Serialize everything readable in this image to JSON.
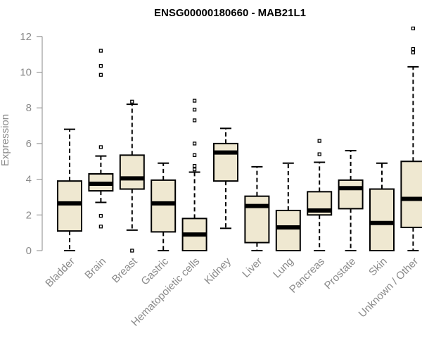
{
  "chart_data": {
    "type": "boxplot",
    "title": "ENSG00000180660 - MAB21L1",
    "xlabel": "",
    "ylabel": "Expression",
    "ylim": [
      0,
      12.4
    ],
    "yticks": [
      0,
      2,
      4,
      6,
      8,
      10,
      12
    ],
    "box_color": "#efe8d1",
    "categories": [
      "Bladder",
      "Brain",
      "Breast",
      "Gastric",
      "Hematopoietic cells",
      "Kidney",
      "Liver",
      "Lung",
      "Pancreas",
      "Prostate",
      "Skin",
      "Unknown / Other"
    ],
    "boxes": [
      {
        "whisker_low": 0.0,
        "q1": 1.1,
        "median": 2.65,
        "q3": 3.9,
        "whisker_high": 6.8,
        "outliers": []
      },
      {
        "whisker_low": 2.7,
        "q1": 3.35,
        "median": 3.75,
        "q3": 4.3,
        "whisker_high": 5.3,
        "outliers": [
          1.35,
          1.95,
          5.8,
          9.85,
          10.35,
          11.2
        ]
      },
      {
        "whisker_low": 1.15,
        "q1": 3.45,
        "median": 4.05,
        "q3": 5.35,
        "whisker_high": 8.2,
        "outliers": [
          0.0,
          8.35
        ]
      },
      {
        "whisker_low": 0.0,
        "q1": 1.05,
        "median": 2.65,
        "q3": 3.95,
        "whisker_high": 4.9,
        "outliers": []
      },
      {
        "whisker_low": 0.0,
        "q1": 0.0,
        "median": 0.9,
        "q3": 1.8,
        "whisker_high": 4.4,
        "outliers": [
          4.55,
          4.75,
          5.35,
          6.0,
          7.3,
          7.9,
          8.4
        ]
      },
      {
        "whisker_low": 1.25,
        "q1": 3.9,
        "median": 5.5,
        "q3": 6.0,
        "whisker_high": 6.85,
        "outliers": []
      },
      {
        "whisker_low": 0.0,
        "q1": 0.45,
        "median": 2.5,
        "q3": 3.05,
        "whisker_high": 4.7,
        "outliers": []
      },
      {
        "whisker_low": 0.0,
        "q1": 0.0,
        "median": 1.3,
        "q3": 2.25,
        "whisker_high": 4.9,
        "outliers": []
      },
      {
        "whisker_low": 0.0,
        "q1": 2.0,
        "median": 2.25,
        "q3": 3.3,
        "whisker_high": 4.95,
        "outliers": [
          5.4,
          6.15
        ]
      },
      {
        "whisker_low": 0.0,
        "q1": 2.35,
        "median": 3.5,
        "q3": 3.95,
        "whisker_high": 5.6,
        "outliers": []
      },
      {
        "whisker_low": 0.0,
        "q1": 0.0,
        "median": 1.55,
        "q3": 3.45,
        "whisker_high": 4.9,
        "outliers": []
      },
      {
        "whisker_low": 0.0,
        "q1": 1.3,
        "median": 2.9,
        "q3": 5.0,
        "whisker_high": 10.3,
        "outliers": [
          11.1,
          11.3,
          12.45
        ]
      }
    ]
  }
}
